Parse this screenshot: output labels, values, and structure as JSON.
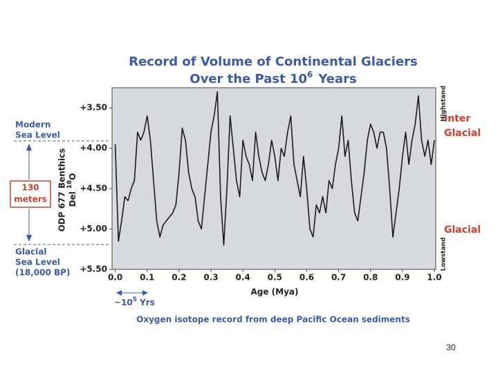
{
  "chart_data": {
    "type": "line",
    "title": "Record of Volume of Continental Glaciers",
    "subtitle": {
      "pre": "Over the Past 10",
      "sup": "6",
      "post": "Years"
    },
    "ylabel": {
      "line1": "ODP 677 Benthics",
      "line2_pre": "Del",
      "line2_sup": "18",
      "line2_post": "O"
    },
    "xlabel": "Age (Mya)",
    "caption": "Oxygen isotope record from deep Pacific Ocean sediments",
    "annotations": {
      "modern": [
        "Modern",
        "Sea Level"
      ],
      "range": [
        "130",
        "meters"
      ],
      "glacial_sea": [
        "Glacial",
        "Sea Level",
        "(18,000 BP)"
      ],
      "highstand": "Highstand",
      "lowstand": "Lowstand",
      "interglacial": [
        "Inter",
        "Glacial"
      ],
      "glacial": "Glacial",
      "period": {
        "pre": "~10",
        "sup": "5",
        "post": "Yrs"
      }
    },
    "page_number": "30",
    "color": "#1a1a1a",
    "y_inverted": true,
    "xlim": [
      -0.01,
      1.0
    ],
    "ylim": [
      3.25,
      5.5
    ],
    "xticks": [
      {
        "value": 0.0,
        "label": "0.0"
      },
      0.1,
      0.2,
      0.3,
      0.4,
      0.5,
      0.6,
      0.7,
      0.8,
      0.9,
      {
        "value": 1.0,
        "label": "1.0"
      }
    ],
    "yticks": [
      {
        "value": 3.5,
        "label": "+3.50"
      },
      {
        "value": 4.0,
        "label": "+4.00"
      },
      {
        "value": 4.5,
        "label": "+4.50"
      },
      {
        "value": 5.0,
        "label": "+5.00"
      },
      {
        "value": 5.5,
        "label": "+5.50"
      }
    ],
    "x": [
      0,
      0.01,
      0.02,
      0.03,
      0.04,
      0.05,
      0.06,
      0.07,
      0.08,
      0.09,
      0.1,
      0.11,
      0.12,
      0.13,
      0.14,
      0.15,
      0.16,
      0.17,
      0.18,
      0.19,
      0.2,
      0.21,
      0.22,
      0.23,
      0.24,
      0.25,
      0.26,
      0.27,
      0.28,
      0.29,
      0.3,
      0.31,
      0.32,
      0.33,
      0.34,
      0.35,
      0.36,
      0.37,
      0.38,
      0.39,
      0.4,
      0.41,
      0.42,
      0.43,
      0.44,
      0.45,
      0.46,
      0.47,
      0.48,
      0.49,
      0.5,
      0.51,
      0.52,
      0.53,
      0.54,
      0.55,
      0.56,
      0.57,
      0.58,
      0.59,
      0.6,
      0.61,
      0.62,
      0.63,
      0.64,
      0.65,
      0.66,
      0.67,
      0.68,
      0.69,
      0.7,
      0.71,
      0.72,
      0.73,
      0.74,
      0.75,
      0.76,
      0.77,
      0.78,
      0.79,
      0.8,
      0.81,
      0.82,
      0.83,
      0.84,
      0.85,
      0.86,
      0.87,
      0.88,
      0.89,
      0.9,
      0.91,
      0.92,
      0.93,
      0.94,
      0.95,
      0.96,
      0.97,
      0.98,
      0.99,
      1.0
    ],
    "values": [
      3.95,
      5.15,
      4.9,
      4.6,
      4.65,
      4.5,
      4.4,
      3.8,
      3.9,
      3.8,
      3.6,
      3.9,
      4.4,
      4.9,
      5.1,
      4.95,
      4.9,
      4.85,
      4.8,
      4.7,
      4.3,
      3.75,
      3.9,
      4.3,
      4.5,
      4.6,
      4.9,
      5.0,
      4.6,
      4.2,
      3.8,
      3.6,
      3.3,
      4.6,
      5.2,
      4.5,
      3.6,
      4.0,
      4.4,
      4.6,
      3.9,
      4.1,
      4.2,
      4.4,
      3.8,
      4.1,
      4.3,
      4.4,
      4.2,
      3.9,
      4.1,
      4.4,
      4.0,
      4.1,
      3.8,
      3.6,
      4.2,
      4.4,
      4.6,
      4.1,
      4.5,
      5.0,
      5.1,
      4.7,
      4.8,
      4.6,
      4.8,
      4.4,
      4.5,
      4.2,
      4.0,
      3.6,
      4.1,
      3.9,
      4.4,
      4.8,
      4.9,
      4.6,
      4.3,
      3.9,
      3.7,
      3.8,
      4.0,
      3.8,
      3.8,
      4.0,
      4.5,
      5.1,
      4.8,
      4.5,
      4.1,
      3.8,
      4.2,
      3.9,
      3.7,
      3.35,
      3.9,
      4.1,
      3.9,
      4.2,
      3.9
    ]
  }
}
